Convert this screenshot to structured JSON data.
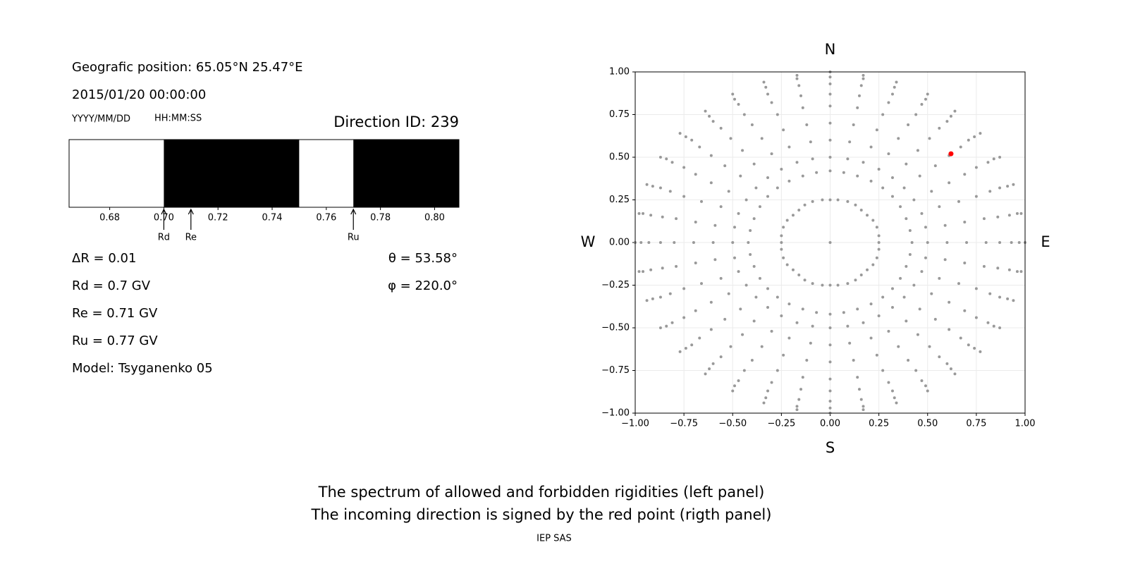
{
  "panel": {
    "position": "Geografic position: 65.05°N 25.47°E",
    "datetime": "2015/01/20 00:00:00",
    "date_format": "YYYY/MM/DD",
    "time_format": "HH:MM:SS",
    "direction": "Direction ID: 239",
    "params": [
      "ΔR = 0.01",
      "Rd = 0.7 GV",
      "Re = 0.71 GV",
      "Ru = 0.77 GV",
      "Model: Tsyganenko 05"
    ],
    "angles": [
      "θ = 53.58°",
      "φ = 220.0°"
    ]
  },
  "chart_data": [
    {
      "type": "spectrum",
      "edges": [
        0.665,
        0.7,
        0.75,
        0.77,
        0.809
      ],
      "colors": [
        "#ffffff",
        "#000000",
        "#ffffff",
        "#000000"
      ],
      "xlim": [
        0.665,
        0.809
      ],
      "xticks": [
        0.68,
        {
          "value": 0.7,
          "label": "0.70"
        },
        0.72,
        0.74,
        0.76,
        0.78,
        {
          "value": 0.8,
          "label": "0.80"
        }
      ],
      "markers": [
        {
          "label": "Rd",
          "value": 0.7
        },
        {
          "label": "Re",
          "value": 0.71
        },
        {
          "label": "Ru",
          "value": 0.77
        }
      ]
    },
    {
      "type": "scatter",
      "north": "N",
      "south": "S",
      "west": "W",
      "east": "E",
      "grid": true,
      "xlim": [
        -1,
        1
      ],
      "ylim": [
        -1,
        1
      ],
      "xticks": [
        {
          "value": -1,
          "label": "−1.00"
        },
        {
          "value": -0.75,
          "label": "−0.75"
        },
        {
          "value": -0.5,
          "label": "−0.50"
        },
        {
          "value": -0.25,
          "label": "−0.25"
        },
        {
          "value": 0,
          "label": "0.00"
        },
        0.25,
        {
          "value": 0.5,
          "label": "0.50"
        },
        0.75,
        {
          "value": 1,
          "label": "1.00"
        }
      ],
      "yticks": [
        {
          "value": -1,
          "label": "−1.00"
        },
        {
          "value": -0.75,
          "label": "−0.75"
        },
        {
          "value": -0.5,
          "label": "−0.50"
        },
        {
          "value": -0.25,
          "label": "−0.25"
        },
        {
          "value": 0,
          "label": "0.00"
        },
        0.25,
        {
          "value": 0.5,
          "label": "0.50"
        },
        0.75,
        {
          "value": 1,
          "label": "1.00"
        }
      ],
      "series": [
        {
          "color": "#999999",
          "x": [
            0,
            1,
            0.98,
            0.94,
            0.87,
            0.77,
            0.64,
            0.5,
            0.34,
            0.17,
            0,
            -0.17,
            -0.34,
            -0.5,
            -0.64,
            -0.77,
            -0.87,
            -0.94,
            -0.98,
            -1,
            -0.98,
            -0.94,
            -0.87,
            -0.77,
            -0.64,
            -0.5,
            -0.34,
            -0.17,
            0,
            0.17,
            0.34,
            0.5,
            0.64,
            0.77,
            0.87,
            0.94,
            0.98,
            0.97,
            0.96,
            0.91,
            0.84,
            0.74,
            0.62,
            0.49,
            0.33,
            0.17,
            0,
            -0.17,
            -0.33,
            -0.49,
            -0.62,
            -0.74,
            -0.84,
            -0.91,
            -0.96,
            -0.97,
            -0.96,
            -0.91,
            -0.84,
            -0.74,
            -0.62,
            -0.49,
            -0.33,
            -0.17,
            0,
            0.17,
            0.33,
            0.49,
            0.62,
            0.74,
            0.84,
            0.91,
            0.96,
            0.93,
            0.92,
            0.87,
            0.81,
            0.71,
            0.6,
            0.47,
            0.32,
            0.16,
            0,
            -0.16,
            -0.32,
            -0.47,
            -0.6,
            -0.71,
            -0.81,
            -0.87,
            -0.92,
            -0.93,
            -0.92,
            -0.87,
            -0.81,
            -0.71,
            -0.6,
            -0.47,
            -0.32,
            -0.16,
            0,
            0.16,
            0.32,
            0.47,
            0.6,
            0.71,
            0.81,
            0.87,
            0.92,
            0.87,
            0.86,
            0.82,
            0.75,
            0.67,
            0.56,
            0.44,
            0.3,
            0.15,
            0,
            -0.15,
            -0.3,
            -0.44,
            -0.56,
            -0.67,
            -0.75,
            -0.82,
            -0.86,
            -0.87,
            -0.86,
            -0.82,
            -0.75,
            -0.67,
            -0.56,
            -0.44,
            -0.3,
            -0.15,
            0,
            0.15,
            0.3,
            0.44,
            0.56,
            0.67,
            0.75,
            0.82,
            0.86,
            0.8,
            0.79,
            0.75,
            0.69,
            0.61,
            0.51,
            0.4,
            0.27,
            0.14,
            0,
            -0.14,
            -0.27,
            -0.4,
            -0.51,
            -0.61,
            -0.69,
            -0.75,
            -0.79,
            -0.8,
            -0.79,
            -0.75,
            -0.69,
            -0.61,
            -0.51,
            -0.4,
            -0.27,
            -0.14,
            0,
            0.14,
            0.27,
            0.4,
            0.51,
            0.61,
            0.69,
            0.75,
            0.79,
            0.7,
            0.69,
            0.66,
            0.61,
            0.54,
            0.45,
            0.35,
            0.24,
            0.12,
            0,
            -0.12,
            -0.24,
            -0.35,
            -0.45,
            -0.54,
            -0.61,
            -0.66,
            -0.69,
            -0.7,
            -0.69,
            -0.66,
            -0.61,
            -0.54,
            -0.45,
            -0.35,
            -0.24,
            -0.12,
            0,
            0.12,
            0.24,
            0.35,
            0.45,
            0.54,
            0.61,
            0.66,
            0.69,
            0.6,
            0.59,
            0.56,
            0.52,
            0.46,
            0.39,
            0.3,
            0.21,
            0.1,
            0,
            -0.1,
            -0.21,
            -0.3,
            -0.39,
            -0.46,
            -0.52,
            -0.56,
            -0.59,
            -0.6,
            -0.59,
            -0.56,
            -0.52,
            -0.46,
            -0.39,
            -0.3,
            -0.21,
            -0.1,
            0,
            0.1,
            0.21,
            0.3,
            0.39,
            0.46,
            0.52,
            0.56,
            0.59,
            0.5,
            0.49,
            0.47,
            0.43,
            0.38,
            0.32,
            0.25,
            0.17,
            0.09,
            0,
            -0.09,
            -0.17,
            -0.25,
            -0.32,
            -0.38,
            -0.43,
            -0.47,
            -0.49,
            -0.5,
            -0.49,
            -0.47,
            -0.43,
            -0.38,
            -0.32,
            -0.25,
            -0.17,
            -0.09,
            0,
            0.09,
            0.17,
            0.25,
            0.32,
            0.38,
            0.43,
            0.47,
            0.49,
            0.42,
            0.41,
            0.39,
            0.36,
            0.32,
            0.27,
            0.21,
            0.14,
            0.07,
            0,
            -0.07,
            -0.14,
            -0.21,
            -0.27,
            -0.32,
            -0.36,
            -0.39,
            -0.41,
            -0.42,
            -0.41,
            -0.39,
            -0.36,
            -0.32,
            -0.27,
            -0.21,
            -0.14,
            -0.07,
            0,
            0.07,
            0.14,
            0.21,
            0.27,
            0.32,
            0.36,
            0.39,
            0.41,
            0.25,
            0.25,
            0.24,
            0.22,
            0.19,
            0.16,
            0.13,
            0.09,
            0.04,
            0,
            -0.04,
            -0.09,
            -0.13,
            -0.16,
            -0.19,
            -0.22,
            -0.24,
            -0.25,
            -0.25,
            -0.25,
            -0.24,
            -0.22,
            -0.19,
            -0.16,
            -0.13,
            -0.09,
            -0.04,
            0,
            0.04,
            0.09,
            0.13,
            0.16,
            0.19,
            0.22,
            0.24,
            0.25
          ],
          "values": [
            0,
            0,
            0.17,
            0.34,
            0.5,
            0.64,
            0.77,
            0.87,
            0.94,
            0.98,
            1,
            0.98,
            0.94,
            0.87,
            0.77,
            0.64,
            0.5,
            0.34,
            0.17,
            0,
            -0.17,
            -0.34,
            -0.5,
            -0.64,
            -0.77,
            -0.87,
            -0.94,
            -0.98,
            -1,
            -0.98,
            -0.94,
            -0.87,
            -0.77,
            -0.64,
            -0.5,
            -0.34,
            -0.17,
            0,
            0.17,
            0.33,
            0.49,
            0.62,
            0.74,
            0.84,
            0.91,
            0.96,
            0.97,
            0.96,
            0.91,
            0.84,
            0.74,
            0.62,
            0.49,
            0.33,
            0.17,
            0,
            -0.17,
            -0.33,
            -0.49,
            -0.62,
            -0.74,
            -0.84,
            -0.91,
            -0.96,
            -0.97,
            -0.96,
            -0.91,
            -0.84,
            -0.74,
            -0.62,
            -0.49,
            -0.33,
            -0.17,
            0,
            0.16,
            0.32,
            0.47,
            0.6,
            0.71,
            0.81,
            0.87,
            0.92,
            0.93,
            0.92,
            0.87,
            0.81,
            0.71,
            0.6,
            0.47,
            0.32,
            0.16,
            0,
            -0.16,
            -0.32,
            -0.47,
            -0.6,
            -0.71,
            -0.81,
            -0.87,
            -0.92,
            -0.93,
            -0.92,
            -0.87,
            -0.81,
            -0.71,
            -0.6,
            -0.47,
            -0.32,
            -0.16,
            0,
            0.15,
            0.3,
            0.44,
            0.56,
            0.67,
            0.75,
            0.82,
            0.86,
            0.87,
            0.86,
            0.82,
            0.75,
            0.67,
            0.56,
            0.44,
            0.3,
            0.15,
            0,
            -0.15,
            -0.3,
            -0.44,
            -0.56,
            -0.67,
            -0.75,
            -0.82,
            -0.86,
            -0.87,
            -0.86,
            -0.82,
            -0.75,
            -0.67,
            -0.56,
            -0.44,
            -0.3,
            -0.15,
            0,
            0.14,
            0.27,
            0.4,
            0.51,
            0.61,
            0.69,
            0.75,
            0.79,
            0.8,
            0.79,
            0.75,
            0.69,
            0.61,
            0.51,
            0.4,
            0.27,
            0.14,
            0,
            -0.14,
            -0.27,
            -0.4,
            -0.51,
            -0.61,
            -0.69,
            -0.75,
            -0.79,
            -0.8,
            -0.79,
            -0.75,
            -0.69,
            -0.61,
            -0.51,
            -0.4,
            -0.27,
            -0.14,
            0,
            0.12,
            0.24,
            0.35,
            0.45,
            0.54,
            0.61,
            0.66,
            0.69,
            0.7,
            0.69,
            0.66,
            0.61,
            0.54,
            0.45,
            0.35,
            0.24,
            0.12,
            0,
            -0.12,
            -0.24,
            -0.35,
            -0.45,
            -0.54,
            -0.61,
            -0.66,
            -0.69,
            -0.7,
            -0.69,
            -0.66,
            -0.61,
            -0.54,
            -0.45,
            -0.35,
            -0.24,
            -0.12,
            0,
            0.1,
            0.21,
            0.3,
            0.39,
            0.46,
            0.52,
            0.56,
            0.59,
            0.6,
            0.59,
            0.56,
            0.52,
            0.46,
            0.39,
            0.3,
            0.21,
            0.1,
            0,
            -0.1,
            -0.21,
            -0.3,
            -0.39,
            -0.46,
            -0.52,
            -0.56,
            -0.59,
            -0.6,
            -0.59,
            -0.56,
            -0.52,
            -0.46,
            -0.39,
            -0.3,
            -0.21,
            -0.1,
            0,
            0.09,
            0.17,
            0.25,
            0.32,
            0.38,
            0.43,
            0.47,
            0.49,
            0.5,
            0.49,
            0.47,
            0.43,
            0.38,
            0.32,
            0.25,
            0.17,
            0.09,
            0,
            -0.09,
            -0.17,
            -0.25,
            -0.32,
            -0.38,
            -0.43,
            -0.47,
            -0.49,
            -0.5,
            -0.49,
            -0.47,
            -0.43,
            -0.38,
            -0.32,
            -0.25,
            -0.17,
            -0.09,
            0,
            0.07,
            0.14,
            0.21,
            0.27,
            0.32,
            0.36,
            0.39,
            0.41,
            0.42,
            0.41,
            0.39,
            0.36,
            0.32,
            0.27,
            0.21,
            0.14,
            0.07,
            0,
            -0.07,
            -0.14,
            -0.21,
            -0.27,
            -0.32,
            -0.36,
            -0.39,
            -0.41,
            -0.42,
            -0.41,
            -0.39,
            -0.36,
            -0.32,
            -0.27,
            -0.21,
            -0.14,
            -0.07,
            0,
            0.04,
            0.09,
            0.13,
            0.16,
            0.19,
            0.22,
            0.24,
            0.25,
            0.25,
            0.25,
            0.24,
            0.22,
            0.19,
            0.16,
            0.13,
            0.09,
            0.04,
            0,
            -0.04,
            -0.09,
            -0.13,
            -0.16,
            -0.19,
            -0.22,
            -0.24,
            -0.25,
            -0.25,
            -0.25,
            -0.24,
            -0.22,
            -0.19,
            -0.16,
            -0.13,
            -0.09,
            -0.04
          ]
        },
        {
          "color": "#ff0000",
          "x": [
            0.62
          ],
          "values": [
            0.52
          ]
        }
      ]
    }
  ],
  "footer": {
    "caption": [
      "The spectrum of allowed and forbidden rigidities (left panel)",
      "The incoming direction is signed by the red point (rigth panel)"
    ],
    "credit": "IEP SAS"
  }
}
